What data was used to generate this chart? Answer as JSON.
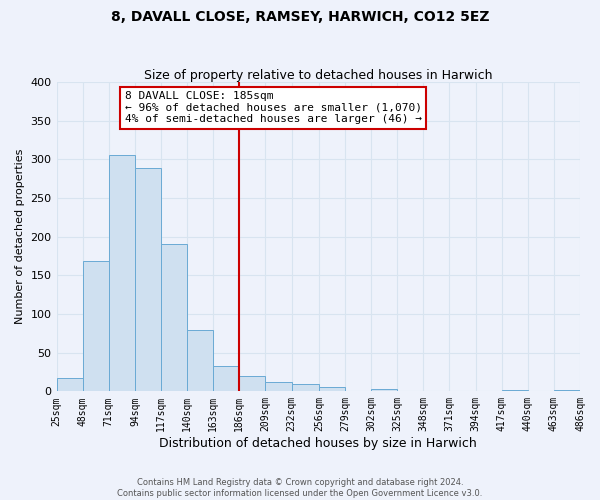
{
  "title": "8, DAVALL CLOSE, RAMSEY, HARWICH, CO12 5EZ",
  "subtitle": "Size of property relative to detached houses in Harwich",
  "xlabel": "Distribution of detached houses by size in Harwich",
  "ylabel": "Number of detached properties",
  "bin_edges": [
    25,
    48,
    71,
    94,
    117,
    140,
    163,
    186,
    209,
    232,
    256,
    279,
    302,
    325,
    348,
    371,
    394,
    417,
    440,
    463,
    486
  ],
  "bin_heights": [
    17,
    169,
    305,
    289,
    191,
    79,
    33,
    20,
    12,
    10,
    5,
    0,
    3,
    0,
    0,
    0,
    0,
    2,
    0,
    2
  ],
  "bar_color": "#cfe0f0",
  "bar_edge_color": "#6aaad4",
  "vline_x": 186,
  "vline_color": "#cc0000",
  "annotation_line1": "8 DAVALL CLOSE: 185sqm",
  "annotation_line2": "← 96% of detached houses are smaller (1,070)",
  "annotation_line3": "4% of semi-detached houses are larger (46) →",
  "annotation_box_color": "#ffffff",
  "annotation_box_edge": "#cc0000",
  "ylim": [
    0,
    400
  ],
  "yticks": [
    0,
    50,
    100,
    150,
    200,
    250,
    300,
    350,
    400
  ],
  "tick_labels": [
    "25sqm",
    "48sqm",
    "71sqm",
    "94sqm",
    "117sqm",
    "140sqm",
    "163sqm",
    "186sqm",
    "209sqm",
    "232sqm",
    "256sqm",
    "279sqm",
    "302sqm",
    "325sqm",
    "348sqm",
    "371sqm",
    "394sqm",
    "417sqm",
    "440sqm",
    "463sqm",
    "486sqm"
  ],
  "footer1": "Contains HM Land Registry data © Crown copyright and database right 2024.",
  "footer2": "Contains public sector information licensed under the Open Government Licence v3.0.",
  "bg_color": "#eef2fb",
  "grid_color": "#d8e4f0",
  "title_fontsize": 10,
  "subtitle_fontsize": 9,
  "xlabel_fontsize": 9,
  "ylabel_fontsize": 8,
  "tick_fontsize": 7,
  "annotation_fontsize": 8,
  "footer_fontsize": 6
}
